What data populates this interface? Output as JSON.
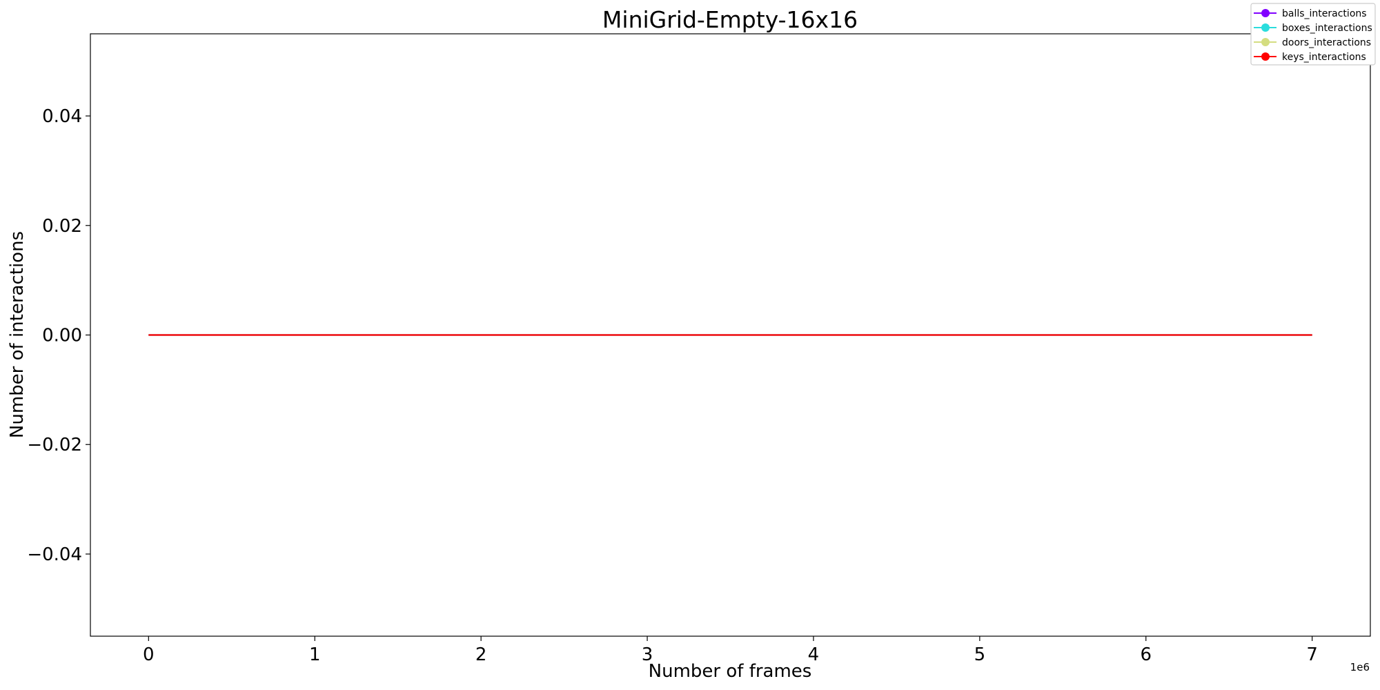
{
  "chart_data": {
    "type": "line",
    "title": "MiniGrid-Empty-16x16",
    "xlabel": "Number of frames",
    "ylabel": "Number of interactions",
    "x_offset_label": "1e6",
    "xlim": [
      -0.35,
      7.35
    ],
    "ylim": [
      -0.055,
      0.055
    ],
    "x_ticks": [
      0,
      1,
      2,
      3,
      4,
      5,
      6,
      7
    ],
    "x_tick_labels": [
      "0",
      "1",
      "2",
      "3",
      "4",
      "5",
      "6",
      "7"
    ],
    "y_ticks": [
      0.04,
      0.02,
      0.0,
      -0.02,
      -0.04
    ],
    "y_tick_labels": [
      "0.04",
      "0.02",
      "0.00",
      "−0.02",
      "−0.04"
    ],
    "grid": false,
    "legend_position": "top-right",
    "series": [
      {
        "name": "balls_interactions",
        "color": "#8000ff",
        "x": [
          0,
          7
        ],
        "y": [
          0,
          0
        ]
      },
      {
        "name": "boxes_interactions",
        "color": "#2adddd",
        "x": [
          0,
          7
        ],
        "y": [
          0,
          0
        ]
      },
      {
        "name": "doors_interactions",
        "color": "#d4dd80",
        "x": [
          0,
          7
        ],
        "y": [
          0,
          0
        ]
      },
      {
        "name": "keys_interactions",
        "color": "#ff0000",
        "x": [
          0,
          7
        ],
        "y": [
          0,
          0
        ]
      }
    ]
  }
}
